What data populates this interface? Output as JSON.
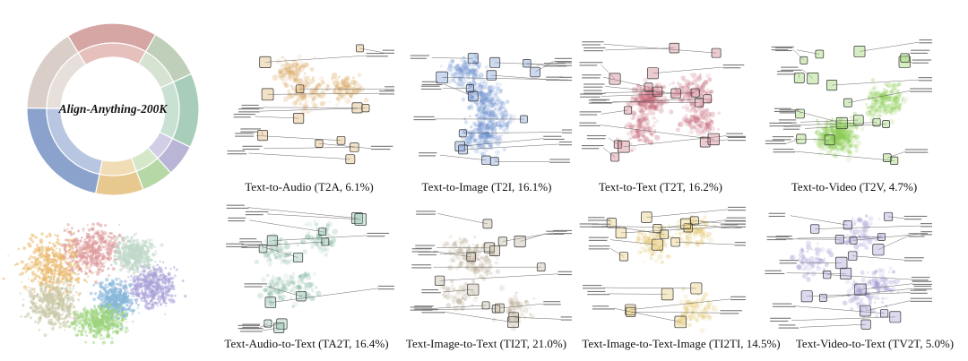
{
  "title": "Align-Anything-200K",
  "donut": {
    "outer": [
      {
        "color": "#d6a6a4",
        "frac": 0.17
      },
      {
        "color": "#bfcfba",
        "frac": 0.1
      },
      {
        "color": "#a8cdb9",
        "frac": 0.14
      },
      {
        "color": "#b9b5d6",
        "frac": 0.06
      },
      {
        "color": "#b5d8a6",
        "frac": 0.06
      },
      {
        "color": "#e7c98f",
        "frac": 0.09
      },
      {
        "color": "#8aa2cc",
        "frac": 0.22
      },
      {
        "color": "#d9cfc8",
        "frac": 0.16
      }
    ],
    "inner": [
      {
        "color": "#e5c0bd",
        "frac": 0.17
      },
      {
        "color": "#d7e3d2",
        "frac": 0.1
      },
      {
        "color": "#c9e1d3",
        "frac": 0.14
      },
      {
        "color": "#d1cee6",
        "frac": 0.06
      },
      {
        "color": "#d4e8c9",
        "frac": 0.06
      },
      {
        "color": "#f0dcb5",
        "frac": 0.09
      },
      {
        "color": "#b8c6e2",
        "frac": 0.22
      },
      {
        "color": "#e7e0da",
        "frac": 0.16
      }
    ]
  },
  "panels": [
    {
      "caption": "Text-to-Audio (T2A, 6.1%)",
      "color": "#d9a55e"
    },
    {
      "caption": "Text-to-Image (T2I, 16.1%)",
      "color": "#6f93cf"
    },
    {
      "caption": "Text-to-Text (T2T, 16.2%)",
      "color": "#c86c7c"
    },
    {
      "caption": "Text-to-Video (T2V, 4.7%)",
      "color": "#8ccd55"
    },
    {
      "caption": "Text-Audio-to-Text (TA2T, 16.4%)",
      "color": "#86b9a3"
    },
    {
      "caption": "Text-Image-to-Text (TI2T, 21.0%)",
      "color": "#b9ab93"
    },
    {
      "caption": "Text-Image-to-Text-Image (TI2TI, 14.5%)",
      "color": "#e2c468"
    },
    {
      "caption": "Text-Video-to-Text (TV2T, 5.0%)",
      "color": "#9a94cf"
    }
  ],
  "overview_colors": [
    "#e9b86a",
    "#de9a9c",
    "#86b6d8",
    "#9bd37a",
    "#a8a0d8",
    "#c9c7a6",
    "#bfd9c8"
  ]
}
